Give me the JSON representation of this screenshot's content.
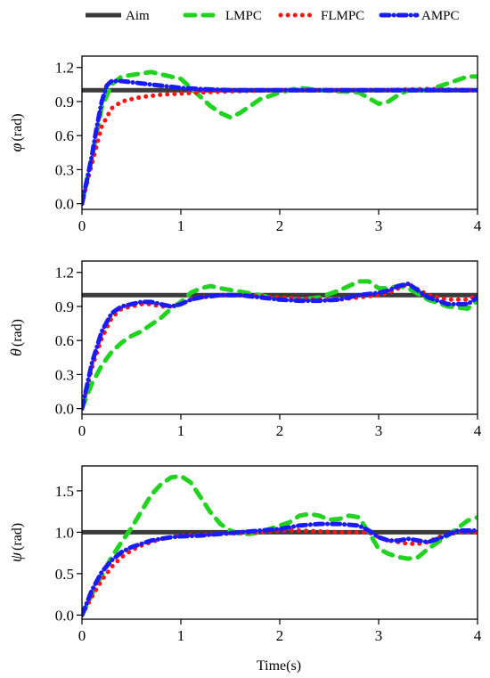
{
  "legend": {
    "placement": "top",
    "entries": [
      {
        "label": "Aim",
        "color": "#3a3a3a",
        "style": "solid"
      },
      {
        "label": "LMPC",
        "color": "#1fd31f",
        "style": "dash"
      },
      {
        "label": "FLMPC",
        "color": "#ff1414",
        "style": "dot"
      },
      {
        "label": "AMPC",
        "color": "#1a1aff",
        "style": "dashdot"
      }
    ]
  },
  "xlabel": "Time(s)",
  "chart_data": [
    {
      "type": "line",
      "ylabel_symbol": "φ",
      "ylabel_unit": "(rad)",
      "xlim": [
        0,
        4
      ],
      "ylim": [
        -0.05,
        1.3
      ],
      "xticks": [
        0,
        1,
        2,
        3,
        4
      ],
      "yticks": [
        0.0,
        0.3,
        0.6,
        0.9,
        1.2
      ],
      "ytick_labels": [
        "0.0",
        "0.3",
        "0.6",
        "0.9",
        "1.2"
      ],
      "series": [
        {
          "name": "Aim",
          "x": [
            0,
            4
          ],
          "y": [
            1,
            1
          ]
        },
        {
          "name": "LMPC",
          "x": [
            0,
            0.1,
            0.2,
            0.3,
            0.4,
            0.55,
            0.7,
            0.85,
            1.0,
            1.1,
            1.2,
            1.3,
            1.4,
            1.5,
            1.6,
            1.7,
            1.8,
            2.0,
            2.2,
            2.4,
            2.6,
            2.8,
            2.9,
            3.0,
            3.1,
            3.2,
            3.3,
            3.5,
            3.7,
            3.9,
            4.0
          ],
          "y": [
            0,
            0.4,
            0.85,
            1.05,
            1.12,
            1.14,
            1.16,
            1.13,
            1.1,
            1.02,
            0.94,
            0.86,
            0.8,
            0.76,
            0.8,
            0.86,
            0.92,
            0.98,
            1.02,
            1.0,
            0.99,
            0.98,
            0.93,
            0.88,
            0.9,
            0.96,
            1.0,
            1.0,
            1.06,
            1.12,
            1.12
          ]
        },
        {
          "name": "FLMPC",
          "x": [
            0,
            0.1,
            0.2,
            0.3,
            0.4,
            0.5,
            0.6,
            0.8,
            1.0,
            1.2,
            1.5,
            2.0,
            2.5,
            3.0,
            3.5,
            4.0
          ],
          "y": [
            0,
            0.35,
            0.68,
            0.84,
            0.9,
            0.92,
            0.94,
            0.96,
            0.97,
            0.98,
            0.99,
            1.0,
            1.0,
            1.0,
            1.01,
            1.0
          ]
        },
        {
          "name": "AMPC",
          "x": [
            0,
            0.1,
            0.15,
            0.2,
            0.25,
            0.3,
            0.4,
            0.5,
            0.6,
            0.7,
            0.8,
            0.9,
            1.0,
            1.2,
            1.5,
            2.0,
            2.5,
            3.0,
            3.5,
            4.0
          ],
          "y": [
            0,
            0.42,
            0.68,
            0.9,
            1.04,
            1.08,
            1.08,
            1.07,
            1.06,
            1.05,
            1.04,
            1.03,
            1.02,
            1.01,
            1.0,
            1.0,
            1.0,
            1.0,
            1.0,
            1.0
          ]
        }
      ]
    },
    {
      "type": "line",
      "ylabel_symbol": "θ",
      "ylabel_unit": "(rad)",
      "xlim": [
        0,
        4
      ],
      "ylim": [
        -0.05,
        1.3
      ],
      "xticks": [
        0,
        1,
        2,
        3,
        4
      ],
      "yticks": [
        0.0,
        0.3,
        0.6,
        0.9,
        1.2
      ],
      "ytick_labels": [
        "0.0",
        "0.3",
        "0.6",
        "0.9",
        "1.2"
      ],
      "series": [
        {
          "name": "Aim",
          "x": [
            0,
            4
          ],
          "y": [
            1,
            1
          ]
        },
        {
          "name": "LMPC",
          "x": [
            0,
            0.1,
            0.2,
            0.3,
            0.4,
            0.5,
            0.6,
            0.7,
            0.8,
            0.9,
            1.0,
            1.1,
            1.2,
            1.3,
            1.4,
            1.6,
            1.8,
            2.0,
            2.2,
            2.4,
            2.6,
            2.8,
            2.9,
            3.0,
            3.1,
            3.2,
            3.3,
            3.5,
            3.7,
            3.9,
            4.0
          ],
          "y": [
            0,
            0.22,
            0.38,
            0.5,
            0.58,
            0.64,
            0.68,
            0.74,
            0.8,
            0.88,
            0.94,
            1.02,
            1.06,
            1.08,
            1.06,
            1.03,
            1.0,
            0.96,
            0.96,
            0.98,
            1.04,
            1.12,
            1.12,
            1.06,
            1.06,
            1.08,
            1.06,
            0.96,
            0.9,
            0.88,
            0.95
          ]
        },
        {
          "name": "FLMPC",
          "x": [
            0,
            0.1,
            0.2,
            0.3,
            0.4,
            0.5,
            0.6,
            0.7,
            0.8,
            0.9,
            1.0,
            1.1,
            1.2,
            1.4,
            1.6,
            1.8,
            2.0,
            2.2,
            2.4,
            2.6,
            2.8,
            3.0,
            3.1,
            3.2,
            3.3,
            3.4,
            3.5,
            3.7,
            3.9,
            4.0
          ],
          "y": [
            0,
            0.36,
            0.62,
            0.8,
            0.88,
            0.9,
            0.92,
            0.92,
            0.9,
            0.9,
            0.92,
            0.96,
            0.98,
            1.0,
            1.0,
            0.99,
            0.98,
            0.97,
            0.96,
            0.96,
            0.98,
            1.0,
            1.02,
            1.06,
            1.1,
            1.05,
            1.0,
            0.96,
            0.96,
            1.0
          ]
        },
        {
          "name": "AMPC",
          "x": [
            0,
            0.1,
            0.2,
            0.3,
            0.4,
            0.5,
            0.6,
            0.7,
            0.8,
            0.9,
            1.0,
            1.1,
            1.2,
            1.4,
            1.6,
            1.8,
            2.0,
            2.2,
            2.4,
            2.6,
            2.8,
            3.0,
            3.1,
            3.2,
            3.3,
            3.4,
            3.5,
            3.7,
            3.9,
            4.0
          ],
          "y": [
            0,
            0.4,
            0.68,
            0.84,
            0.9,
            0.92,
            0.94,
            0.94,
            0.92,
            0.9,
            0.92,
            0.96,
            0.98,
            1.0,
            1.0,
            0.98,
            0.96,
            0.95,
            0.95,
            0.96,
            1.0,
            1.02,
            1.04,
            1.08,
            1.1,
            1.04,
            0.98,
            0.92,
            0.92,
            0.98
          ]
        }
      ]
    },
    {
      "type": "line",
      "ylabel_symbol": "ψ",
      "ylabel_unit": "(rad)",
      "xlim": [
        0,
        4
      ],
      "ylim": [
        -0.05,
        1.8
      ],
      "xticks": [
        0,
        1,
        2,
        3,
        4
      ],
      "yticks": [
        0.0,
        0.5,
        1.0,
        1.5
      ],
      "ytick_labels": [
        "0.0",
        "0.5",
        "1.0",
        "1.5"
      ],
      "series": [
        {
          "name": "Aim",
          "x": [
            0,
            4
          ],
          "y": [
            1,
            1
          ]
        },
        {
          "name": "LMPC",
          "x": [
            0,
            0.1,
            0.2,
            0.3,
            0.4,
            0.5,
            0.6,
            0.7,
            0.8,
            0.9,
            1.0,
            1.1,
            1.2,
            1.3,
            1.4,
            1.5,
            1.6,
            1.7,
            1.8,
            2.0,
            2.1,
            2.2,
            2.3,
            2.4,
            2.5,
            2.6,
            2.7,
            2.8,
            2.9,
            3.0,
            3.1,
            3.2,
            3.3,
            3.4,
            3.5,
            3.7,
            3.9,
            4.0
          ],
          "y": [
            0,
            0.25,
            0.48,
            0.7,
            0.88,
            1.05,
            1.25,
            1.45,
            1.58,
            1.66,
            1.68,
            1.6,
            1.42,
            1.24,
            1.1,
            1.02,
            0.98,
            0.98,
            1.0,
            1.08,
            1.12,
            1.2,
            1.22,
            1.2,
            1.15,
            1.16,
            1.2,
            1.18,
            1.0,
            0.8,
            0.74,
            0.7,
            0.68,
            0.7,
            0.8,
            0.96,
            1.14,
            1.18
          ]
        },
        {
          "name": "FLMPC",
          "x": [
            0,
            0.1,
            0.2,
            0.3,
            0.4,
            0.5,
            0.6,
            0.7,
            0.8,
            0.9,
            1.0,
            1.2,
            1.4,
            1.6,
            1.8,
            2.0,
            2.2,
            2.4,
            2.6,
            2.8,
            2.9,
            3.0,
            3.1,
            3.2,
            3.3,
            3.4,
            3.5,
            3.6,
            3.8,
            4.0
          ],
          "y": [
            0,
            0.22,
            0.42,
            0.58,
            0.7,
            0.78,
            0.84,
            0.88,
            0.92,
            0.94,
            0.96,
            0.97,
            0.98,
            0.99,
            1.0,
            1.02,
            1.02,
            1.01,
            1.0,
            1.0,
            1.0,
            0.94,
            0.9,
            0.88,
            0.86,
            0.86,
            0.88,
            0.94,
            1.0,
            1.0
          ]
        },
        {
          "name": "AMPC",
          "x": [
            0,
            0.1,
            0.2,
            0.3,
            0.4,
            0.5,
            0.6,
            0.7,
            0.8,
            0.9,
            1.0,
            1.2,
            1.4,
            1.6,
            1.8,
            2.0,
            2.2,
            2.4,
            2.6,
            2.8,
            2.9,
            3.0,
            3.1,
            3.2,
            3.3,
            3.4,
            3.5,
            3.6,
            3.8,
            4.0
          ],
          "y": [
            0,
            0.3,
            0.52,
            0.66,
            0.76,
            0.82,
            0.86,
            0.9,
            0.92,
            0.94,
            0.95,
            0.96,
            0.98,
            1.0,
            1.02,
            1.04,
            1.08,
            1.1,
            1.1,
            1.08,
            1.02,
            0.94,
            0.9,
            0.9,
            0.92,
            0.9,
            0.88,
            0.92,
            1.02,
            1.02
          ]
        }
      ]
    }
  ]
}
